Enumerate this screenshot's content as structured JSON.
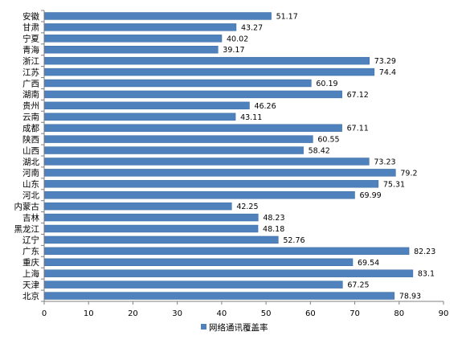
{
  "chart_data": {
    "type": "bar",
    "orientation": "horizontal",
    "categories": [
      "安徽",
      "甘肃",
      "宁夏",
      "青海",
      "浙江",
      "江苏",
      "广西",
      "湖南",
      "贵州",
      "云南",
      "成都",
      "陕西",
      "山西",
      "湖北",
      "河南",
      "山东",
      "河北",
      "内蒙古",
      "吉林",
      "黑龙江",
      "辽宁",
      "广东",
      "重庆",
      "上海",
      "天津",
      "北京"
    ],
    "series": [
      {
        "name": "网络通讯覆盖率",
        "values": [
          51.17,
          43.27,
          40.02,
          39.17,
          73.29,
          74.4,
          60.19,
          67.12,
          46.26,
          43.11,
          67.11,
          60.55,
          58.42,
          73.23,
          79.2,
          75.31,
          69.99,
          42.25,
          48.23,
          48.18,
          52.76,
          82.23,
          69.54,
          83.1,
          67.25,
          78.93
        ],
        "value_labels": [
          "51.17",
          "43.27",
          "40.02",
          "39.17",
          "73.29",
          "74.4",
          "60.19",
          "67.12",
          "46.26",
          "43.11",
          "67.11",
          "60.55",
          "58.42",
          "73.23",
          "79.2",
          "75.31",
          "69.99",
          "42.25",
          "48.23",
          "48.18",
          "52.76",
          "82.23",
          "69.54",
          "83.1",
          "67.25",
          "78.93"
        ]
      }
    ],
    "xlim": [
      0,
      90
    ],
    "xticks": [
      "0",
      "10",
      "20",
      "30",
      "40",
      "50",
      "60",
      "70",
      "80",
      "90"
    ],
    "grid": false,
    "legend_position": "bottom",
    "bar_color": "#4f81bd",
    "title": "",
    "xlabel": "",
    "ylabel": ""
  }
}
